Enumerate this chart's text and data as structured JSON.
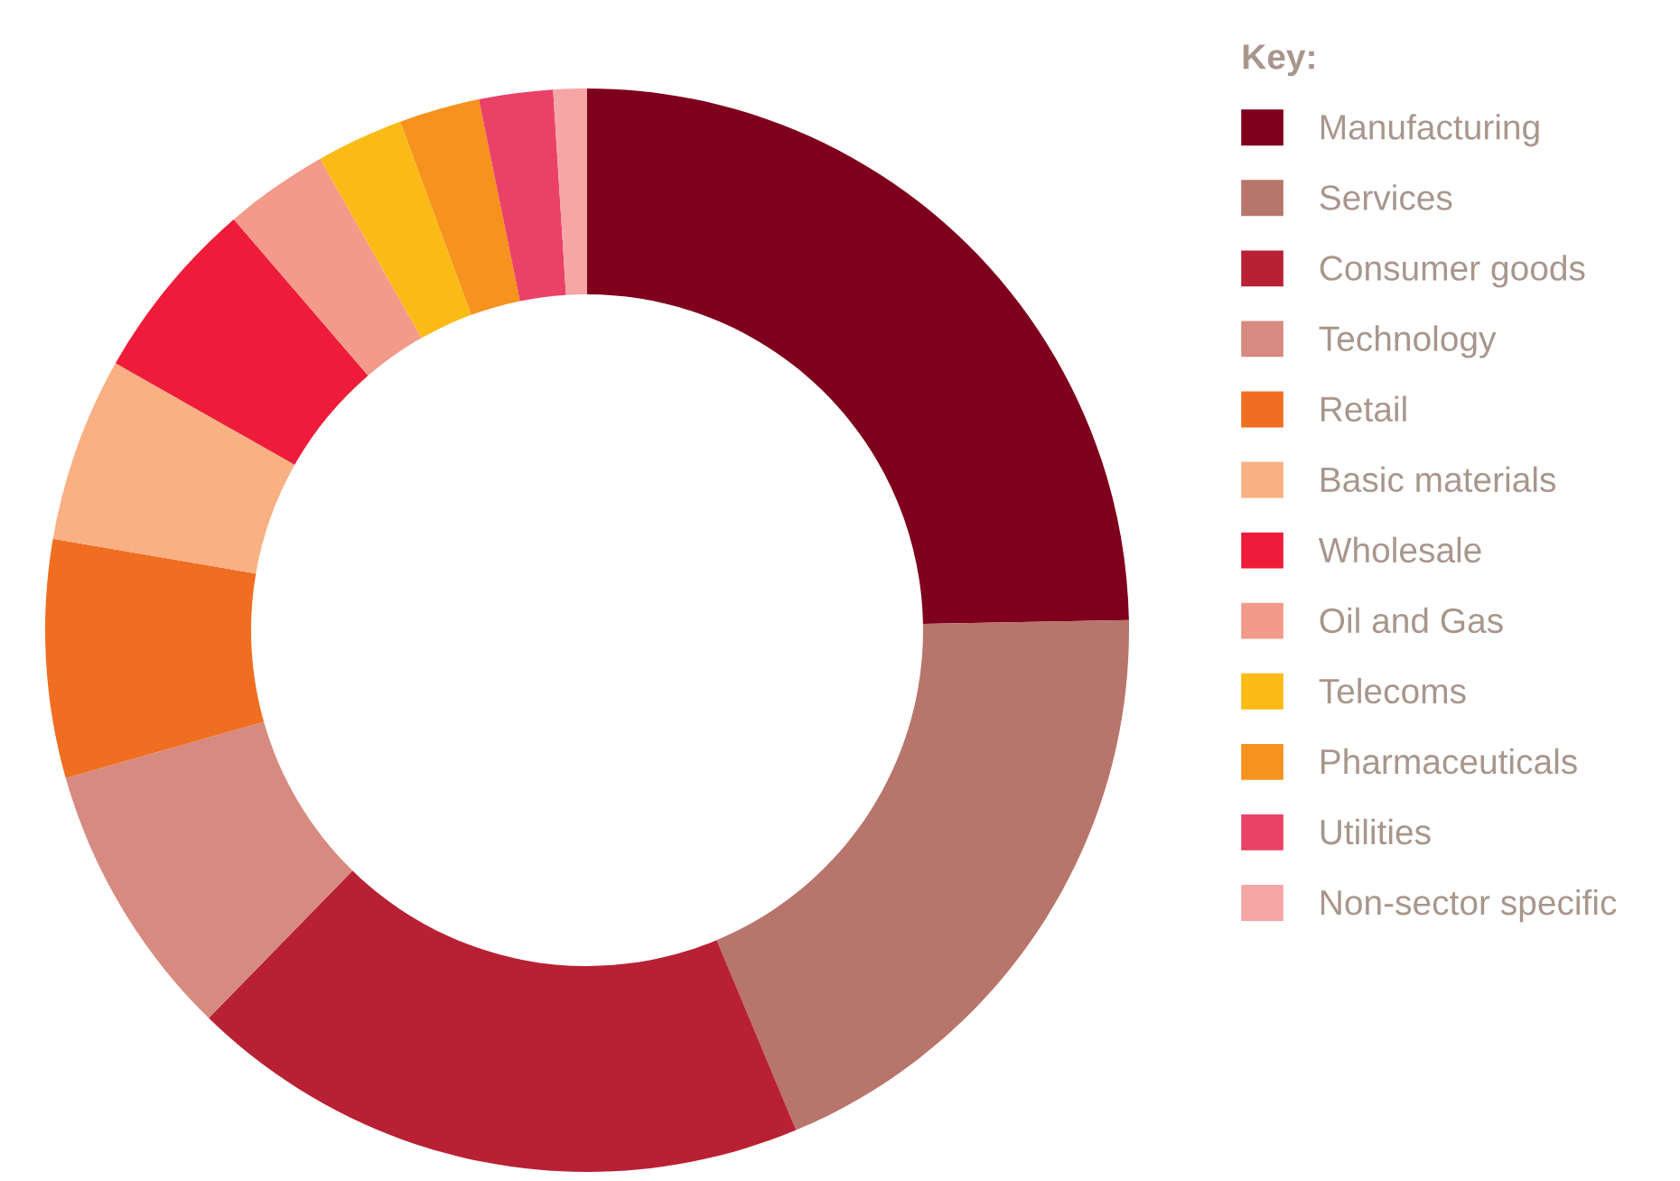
{
  "chart_data": {
    "type": "donut",
    "legend_title": "Key:",
    "legend": "right",
    "categories": [
      "Manufacturing",
      "Services",
      "Consumer goods",
      "Technology",
      "Retail",
      "Basic materials",
      "Wholesale",
      "Oil and Gas",
      "Telecoms",
      "Pharmaceuticals",
      "Utilities",
      "Non-sector specific"
    ],
    "values": [
      24.7,
      19.0,
      18.6,
      8.3,
      7.1,
      5.5,
      5.5,
      3.1,
      2.6,
      2.4,
      2.2,
      1.0
    ],
    "colors": [
      "#7f001c",
      "#b8756b",
      "#b82134",
      "#d68a80",
      "#f06e22",
      "#f9b083",
      "#ee1c3a",
      "#f39a8a",
      "#fbbb16",
      "#f6921e",
      "#ea4266",
      "#f7a6a6"
    ]
  }
}
